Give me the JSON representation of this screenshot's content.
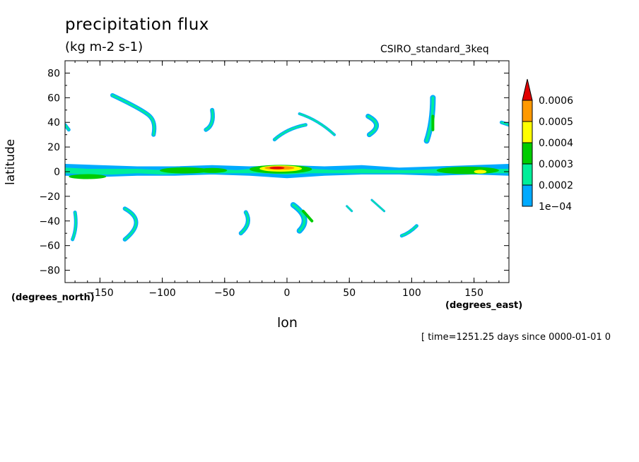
{
  "chart_data": {
    "type": "heatmap",
    "title": "precipitation flux",
    "units": "(kg m-2 s-1)",
    "dataset": "CSIRO_standard_3keq",
    "xlabel": "lon",
    "ylabel": "latitude",
    "x_unit_label": "(degrees_east)",
    "y_unit_label": "(degrees_north)",
    "time_label": "[ time=1251.25 days since 0000-01-01 0",
    "xlim": [
      -178,
      178
    ],
    "ylim": [
      -90,
      90
    ],
    "x_ticks": [
      "-150",
      "-100",
      "-50",
      "0",
      "50",
      "100",
      "150"
    ],
    "x_tick_values": [
      -150,
      -100,
      -50,
      0,
      50,
      100,
      150
    ],
    "y_ticks": [
      "80",
      "60",
      "40",
      "20",
      "0",
      "-20",
      "-40",
      "-60",
      "-80"
    ],
    "y_tick_values": [
      80,
      60,
      40,
      20,
      0,
      -20,
      -40,
      -60,
      -80
    ],
    "colorbar": {
      "labels": [
        "0.0006",
        "0.0005",
        "0.0004",
        "0.0003",
        "0.0002",
        "1e-04"
      ],
      "colors": [
        "#e00000",
        "#ff9900",
        "#ffff00",
        "#00cc00",
        "#00ee99",
        "#00aaff"
      ]
    },
    "features": [
      {
        "kind": "band",
        "points": [
          [
            -178,
            6
          ],
          [
            -150,
            5
          ],
          [
            -120,
            4
          ],
          [
            -90,
            4
          ],
          [
            -60,
            5
          ],
          [
            -30,
            4
          ],
          [
            0,
            5
          ],
          [
            30,
            4
          ],
          [
            60,
            5
          ],
          [
            90,
            3
          ],
          [
            120,
            4
          ],
          [
            150,
            5
          ],
          [
            178,
            6
          ],
          [
            178,
            -3
          ],
          [
            150,
            -2
          ],
          [
            120,
            -3
          ],
          [
            90,
            -2
          ],
          [
            60,
            -2
          ],
          [
            30,
            -3
          ],
          [
            0,
            -5
          ],
          [
            -30,
            -3
          ],
          [
            -60,
            -2
          ],
          [
            -90,
            -3
          ],
          [
            -120,
            -3
          ],
          [
            -150,
            -4
          ],
          [
            -178,
            -3
          ]
        ],
        "level": 1
      },
      {
        "kind": "band",
        "points": [
          [
            -178,
            3
          ],
          [
            -160,
            2
          ],
          [
            -140,
            2
          ],
          [
            -120,
            2
          ],
          [
            -100,
            1
          ],
          [
            -80,
            3
          ],
          [
            -60,
            2
          ],
          [
            -40,
            1
          ],
          [
            -20,
            3
          ],
          [
            0,
            3
          ],
          [
            20,
            2
          ],
          [
            40,
            1
          ],
          [
            60,
            2
          ],
          [
            80,
            1
          ],
          [
            100,
            1
          ],
          [
            120,
            2
          ],
          [
            140,
            3
          ],
          [
            160,
            2
          ],
          [
            178,
            2
          ],
          [
            178,
            -1
          ],
          [
            160,
            -1
          ],
          [
            140,
            -1
          ],
          [
            120,
            -1
          ],
          [
            100,
            -1
          ],
          [
            80,
            -1
          ],
          [
            60,
            -1
          ],
          [
            40,
            -1
          ],
          [
            20,
            -1
          ],
          [
            0,
            -2
          ],
          [
            -20,
            -1
          ],
          [
            -40,
            -1
          ],
          [
            -60,
            -1
          ],
          [
            -80,
            -1
          ],
          [
            -100,
            -2
          ],
          [
            -120,
            -1
          ],
          [
            -140,
            -2
          ],
          [
            -160,
            -2
          ],
          [
            -178,
            -1
          ]
        ],
        "level": 2
      },
      {
        "kind": "blob",
        "cx": -82,
        "cy": 1,
        "rx": 20,
        "ry": 2.5,
        "level": 3
      },
      {
        "kind": "blob",
        "cx": -60,
        "cy": 1,
        "rx": 12,
        "ry": 2,
        "level": 3
      },
      {
        "kind": "blob",
        "cx": -5,
        "cy": 2,
        "rx": 25,
        "ry": 3.5,
        "level": 3
      },
      {
        "kind": "blob",
        "cx": -5,
        "cy": 2.5,
        "rx": 17,
        "ry": 2.5,
        "level": 4
      },
      {
        "kind": "blob",
        "cx": -6,
        "cy": 3,
        "rx": 12,
        "ry": 1.5,
        "level": 5
      },
      {
        "kind": "blob",
        "cx": -8,
        "cy": 3,
        "rx": 6,
        "ry": 1,
        "level": 6
      },
      {
        "kind": "blob",
        "cx": 145,
        "cy": 1,
        "rx": 25,
        "ry": 3,
        "level": 3
      },
      {
        "kind": "blob",
        "cx": 155,
        "cy": 0,
        "rx": 5,
        "ry": 1.5,
        "level": 4
      },
      {
        "kind": "blob",
        "cx": -160,
        "cy": -4,
        "rx": 15,
        "ry": 2,
        "level": 3
      },
      {
        "kind": "arc",
        "points": [
          [
            -140,
            62
          ],
          [
            -115,
            50
          ],
          [
            -105,
            40
          ],
          [
            -107,
            30
          ]
        ],
        "width": 6,
        "level": 1
      },
      {
        "kind": "arc",
        "points": [
          [
            -60,
            50
          ],
          [
            -58,
            38
          ],
          [
            -65,
            34
          ]
        ],
        "width": 6,
        "level": 1
      },
      {
        "kind": "arc",
        "points": [
          [
            -10,
            26
          ],
          [
            0,
            35
          ],
          [
            15,
            38
          ]
        ],
        "width": 5,
        "level": 1
      },
      {
        "kind": "arc",
        "points": [
          [
            10,
            47
          ],
          [
            25,
            42
          ],
          [
            38,
            30
          ]
        ],
        "width": 4,
        "level": 1
      },
      {
        "kind": "arc",
        "points": [
          [
            65,
            45
          ],
          [
            78,
            38
          ],
          [
            66,
            30
          ]
        ],
        "width": 7,
        "level": 1
      },
      {
        "kind": "arc",
        "points": [
          [
            117,
            60
          ],
          [
            117,
            40
          ],
          [
            112,
            25
          ]
        ],
        "width": 8,
        "level": 1
      },
      {
        "kind": "arc",
        "points": [
          [
            117,
            45
          ],
          [
            117,
            34
          ]
        ],
        "width": 4,
        "level": 3
      },
      {
        "kind": "arc",
        "points": [
          [
            -178,
            38
          ],
          [
            -175,
            34
          ]
        ],
        "width": 5,
        "level": 1
      },
      {
        "kind": "arc",
        "points": [
          [
            172,
            40
          ],
          [
            178,
            38
          ]
        ],
        "width": 5,
        "level": 1
      },
      {
        "kind": "arc",
        "points": [
          [
            -130,
            -30
          ],
          [
            -112,
            -40
          ],
          [
            -130,
            -55
          ]
        ],
        "width": 6,
        "level": 1
      },
      {
        "kind": "arc",
        "points": [
          [
            -33,
            -33
          ],
          [
            -28,
            -42
          ],
          [
            -37,
            -50
          ]
        ],
        "width": 6,
        "level": 1
      },
      {
        "kind": "arc",
        "points": [
          [
            5,
            -27
          ],
          [
            20,
            -38
          ],
          [
            10,
            -48
          ]
        ],
        "width": 8,
        "level": 1
      },
      {
        "kind": "arc",
        "points": [
          [
            13,
            -32
          ],
          [
            20,
            -40
          ]
        ],
        "width": 4,
        "level": 3
      },
      {
        "kind": "arc",
        "points": [
          [
            -170,
            -33
          ],
          [
            -168,
            -45
          ],
          [
            -172,
            -55
          ]
        ],
        "width": 5,
        "level": 1
      },
      {
        "kind": "arc",
        "points": [
          [
            68,
            -23
          ],
          [
            78,
            -32
          ]
        ],
        "width": 3,
        "level": 1
      },
      {
        "kind": "arc",
        "points": [
          [
            48,
            -28
          ],
          [
            52,
            -32
          ]
        ],
        "width": 3,
        "level": 1
      },
      {
        "kind": "arc",
        "points": [
          [
            104,
            -44
          ],
          [
            98,
            -50
          ],
          [
            92,
            -52
          ]
        ],
        "width": 5,
        "level": 1
      }
    ]
  }
}
